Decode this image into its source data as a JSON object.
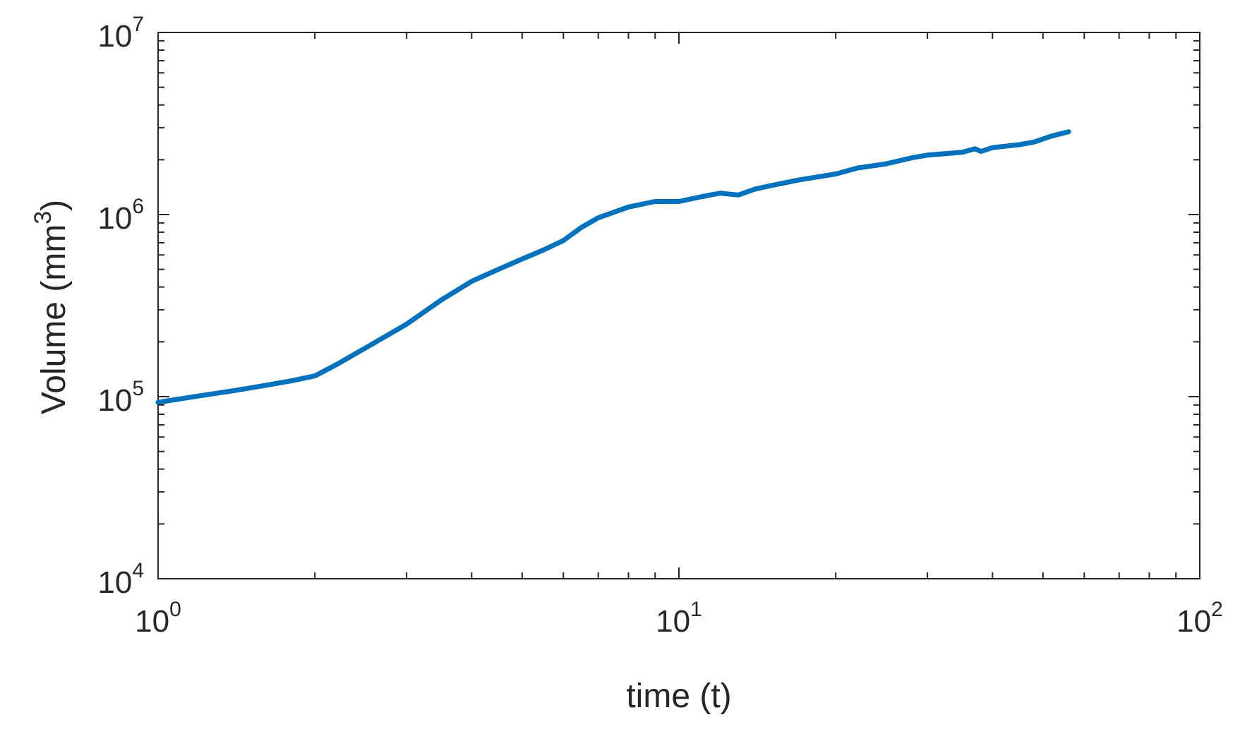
{
  "chart_data": {
    "type": "line",
    "xlabel": "time (t)",
    "ylabel": {
      "text": "Volume (mm",
      "superscript": "3",
      "closing": ")"
    },
    "xscale": "log",
    "yscale": "log",
    "xlim": [
      1,
      100
    ],
    "ylim": [
      10000,
      10000000
    ],
    "grid": false,
    "legend": "none",
    "colors": {
      "line": "#0072BD",
      "axes": "#262626",
      "background": "#ffffff"
    },
    "x_ticks": [
      {
        "value": 1,
        "base": "10",
        "exp": "0"
      },
      {
        "value": 10,
        "base": "10",
        "exp": "1"
      },
      {
        "value": 100,
        "base": "10",
        "exp": "2"
      }
    ],
    "y_ticks": [
      {
        "value": 10000,
        "base": "10",
        "exp": "4"
      },
      {
        "value": 100000,
        "base": "10",
        "exp": "5"
      },
      {
        "value": 1000000,
        "base": "10",
        "exp": "6"
      },
      {
        "value": 10000000,
        "base": "10",
        "exp": "7"
      }
    ],
    "series": [
      {
        "x": [
          1,
          1.2,
          1.4,
          1.6,
          1.8,
          2.0,
          2.2,
          2.5,
          3.0,
          3.5,
          4.0,
          4.5,
          5.0,
          5.5,
          6.0,
          6.5,
          7.0,
          7.5,
          8.0,
          8.5,
          9.0,
          10,
          11,
          12,
          13,
          14,
          15,
          17,
          20,
          22,
          25,
          28,
          30,
          35,
          37,
          38,
          40,
          45,
          48,
          52,
          56
        ],
        "y": [
          93000,
          101000,
          108000,
          115000,
          122000,
          130000,
          150000,
          185000,
          250000,
          340000,
          430000,
          500000,
          570000,
          640000,
          720000,
          850000,
          960000,
          1030000,
          1100000,
          1140000,
          1180000,
          1180000,
          1250000,
          1310000,
          1280000,
          1380000,
          1440000,
          1550000,
          1670000,
          1800000,
          1900000,
          2050000,
          2120000,
          2200000,
          2300000,
          2220000,
          2330000,
          2420000,
          2500000,
          2700000,
          2850000
        ]
      }
    ]
  }
}
